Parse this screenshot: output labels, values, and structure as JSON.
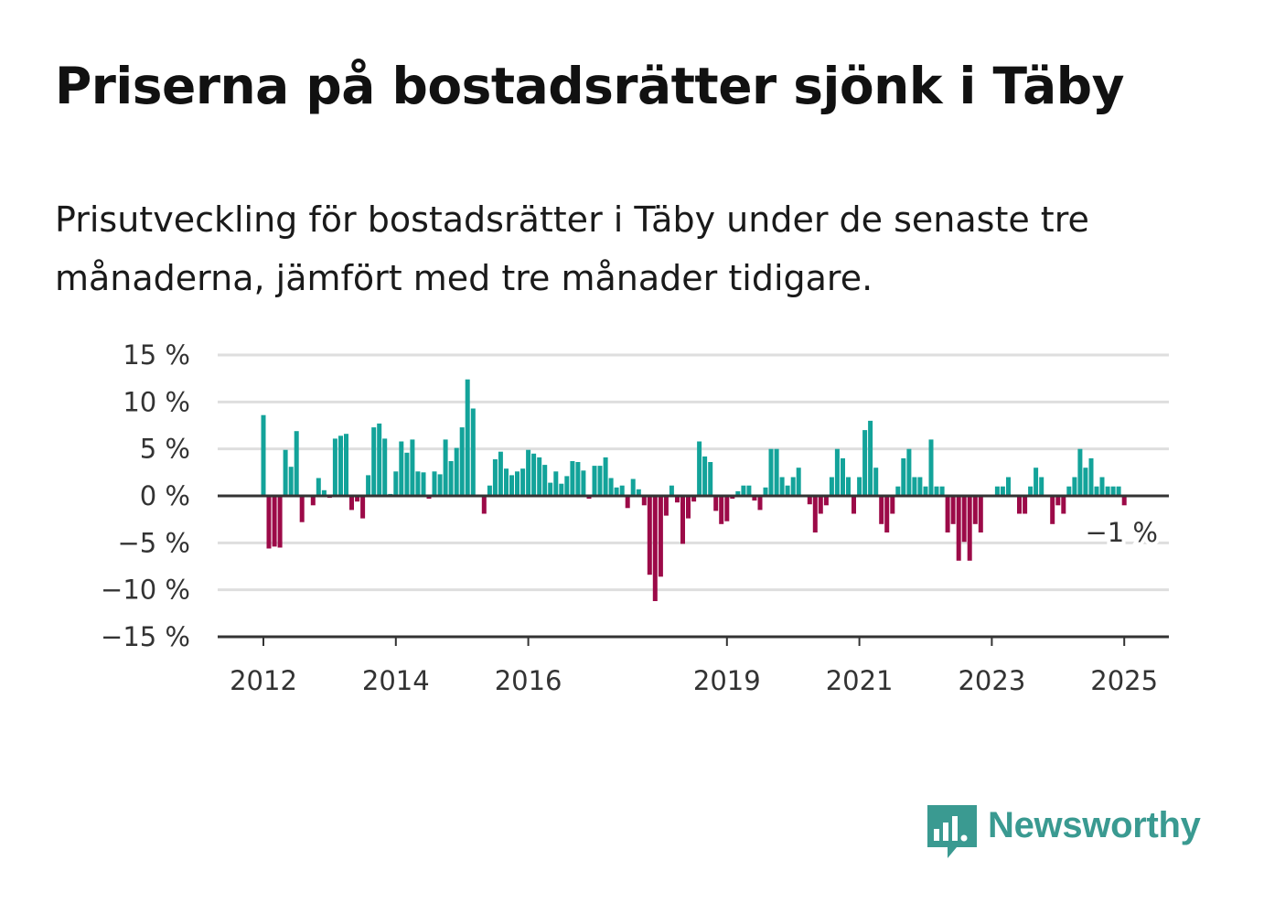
{
  "title": "Priserna på bostadsrätter sjönk i Täby",
  "subtitle": "Prisutveckling för bostadsrätter i Täby under de senaste tre månaderna, jämfört med tre månader tidigare.",
  "logo": {
    "text": "Newsworthy",
    "icon": "bar-chart-speech-bubble-icon"
  },
  "colors": {
    "positive": "#13a39a",
    "negative": "#9c0a48",
    "grid": "#dedede",
    "axis": "#333333",
    "logo": "#3a9a91"
  },
  "chart_data": {
    "type": "bar",
    "ylim": [
      -15,
      15
    ],
    "yticks": [
      15,
      10,
      5,
      0,
      -5,
      -10,
      -15
    ],
    "ytick_labels": [
      "15 %",
      "10 %",
      "5 %",
      "0 %",
      "−5 %",
      "−10 %",
      "−15 %"
    ],
    "xticks": [
      2012,
      2014,
      2016,
      2019,
      2021,
      2023,
      2025
    ],
    "xtick_labels": [
      "2012",
      "2014",
      "2016",
      "2019",
      "2021",
      "2023",
      "2025"
    ],
    "x_start": 2012.0,
    "x_step": 0.08333,
    "grid": true,
    "annotation": {
      "text": "−1 %",
      "target": "last"
    },
    "values": [
      8.6,
      -5.6,
      -5.4,
      -5.5,
      4.9,
      3.1,
      6.9,
      -2.8,
      0,
      -1,
      1.9,
      0.6,
      -0.2,
      6.1,
      6.4,
      6.6,
      -1.5,
      -0.6,
      -2.4,
      2.2,
      7.3,
      7.7,
      6.1,
      0.2,
      2.6,
      5.8,
      4.6,
      6.0,
      2.6,
      2.5,
      -0.3,
      2.6,
      2.3,
      6.0,
      3.7,
      5.1,
      7.3,
      12.4,
      9.3,
      0,
      -1.9,
      1.1,
      3.9,
      4.7,
      2.9,
      2.2,
      2.6,
      2.9,
      4.9,
      4.5,
      4.1,
      3.3,
      1.4,
      2.6,
      1.3,
      2.1,
      3.7,
      3.6,
      2.7,
      -0.3,
      3.2,
      3.2,
      4.1,
      1.9,
      0.9,
      1.1,
      -1.3,
      1.8,
      0.7,
      -1.0,
      -8.4,
      -11.2,
      -8.6,
      -2.1,
      1.1,
      -0.7,
      -5.1,
      -2.4,
      -0.6,
      5.8,
      4.2,
      3.6,
      -1.6,
      -3.0,
      -2.7,
      -0.3,
      0.5,
      1.1,
      1.1,
      -0.5,
      -1.5,
      0.9,
      5.0,
      5.0,
      2.0,
      1.1,
      2.0,
      3.0,
      0,
      -0.9,
      -3.9,
      -1.9,
      -1.0,
      2.0,
      5.0,
      4.0,
      2.0,
      -1.9,
      2.0,
      7.0,
      8.0,
      3.0,
      -3.0,
      -3.9,
      -1.9,
      1.0,
      4.0,
      5.0,
      2.0,
      2.0,
      1.0,
      6.0,
      1.0,
      1.0,
      -3.9,
      -3.0,
      -6.9,
      -4.9,
      -6.9,
      -3.0,
      -3.9,
      0,
      0,
      1.0,
      1.0,
      2.0,
      0,
      -1.9,
      -1.9,
      1.0,
      3.0,
      2.0,
      0,
      -3.0,
      -1.0,
      -1.9,
      1.0,
      2.0,
      5.0,
      3.0,
      4.0,
      1.0,
      2.0,
      1.0,
      1.0,
      1.0,
      -1.0
    ]
  }
}
